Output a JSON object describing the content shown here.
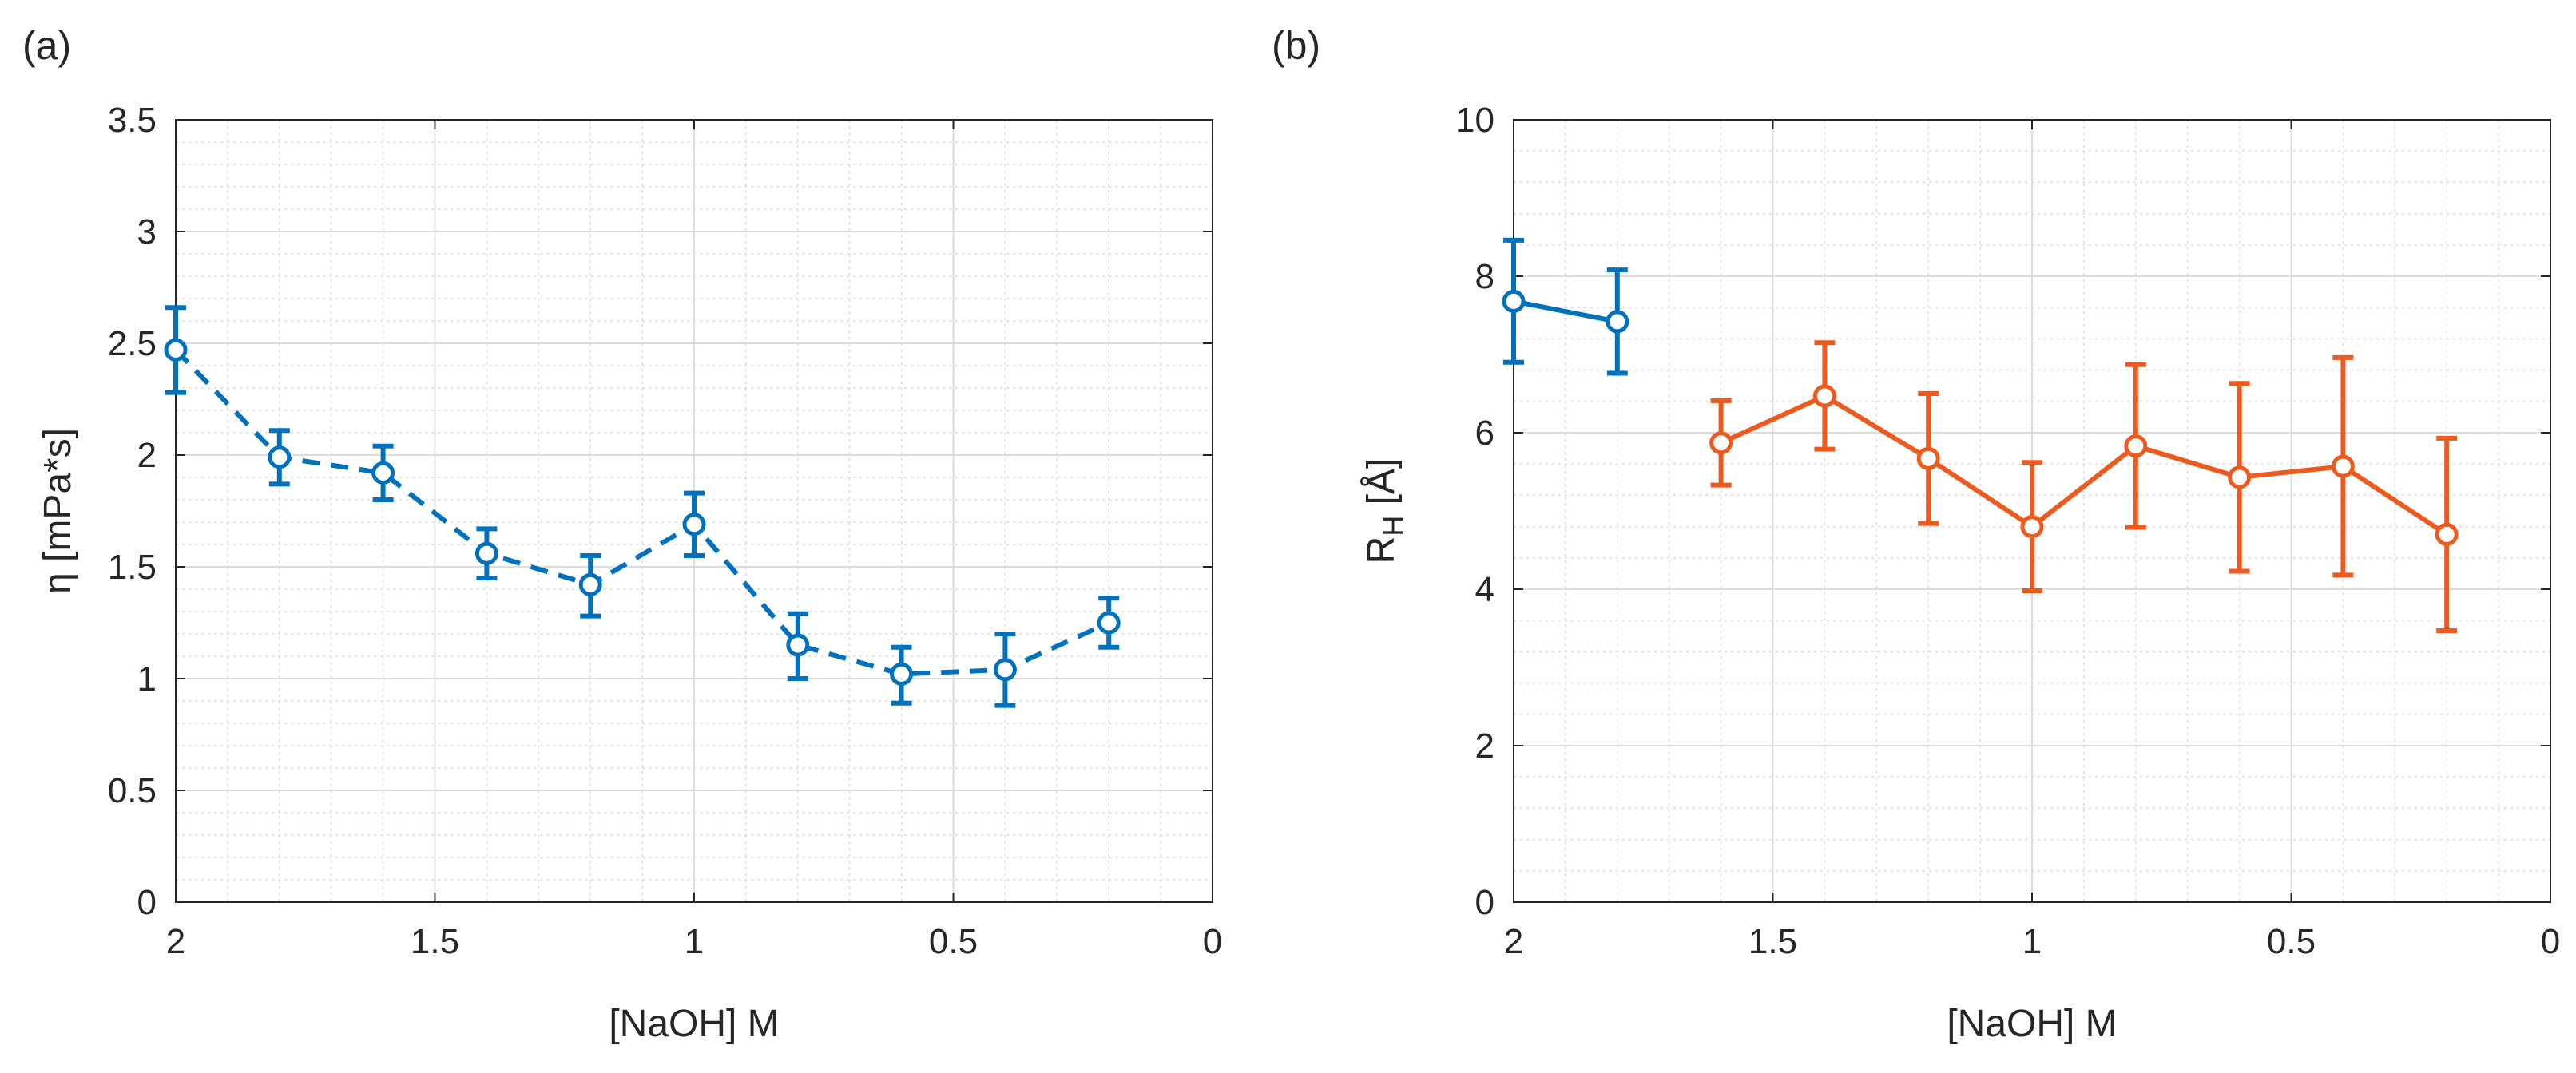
{
  "chart_data": [
    {
      "type": "line",
      "panel_label": "(a)",
      "xlabel": "[NaOH] M",
      "ylabel": "η [mPa*s]",
      "xlim": [
        2,
        0
      ],
      "ylim": [
        0,
        3.5
      ],
      "x_ticks": [
        2,
        1.5,
        1,
        0.5,
        0
      ],
      "x_tick_labels": [
        "2",
        "1.5",
        "1",
        "0.5",
        "0"
      ],
      "y_ticks": [
        0,
        0.5,
        1,
        1.5,
        2,
        2.5,
        3,
        3.5
      ],
      "y_tick_labels": [
        "0",
        "0.5",
        "1",
        "1.5",
        "2",
        "2.5",
        "3",
        "3.5"
      ],
      "x_reversed": true,
      "grid": true,
      "minor_grid": true,
      "series": [
        {
          "color": "#0072BD",
          "line_style": "dashed",
          "marker": "circle",
          "x": [
            2.0,
            1.8,
            1.6,
            1.4,
            1.2,
            1.0,
            0.8,
            0.6,
            0.4,
            0.2
          ],
          "y": [
            2.47,
            1.99,
            1.92,
            1.56,
            1.42,
            1.69,
            1.15,
            1.02,
            1.04,
            1.25
          ],
          "err_low": [
            0.19,
            0.12,
            0.12,
            0.11,
            0.14,
            0.14,
            0.15,
            0.13,
            0.16,
            0.11
          ],
          "err_high": [
            0.19,
            0.12,
            0.12,
            0.11,
            0.13,
            0.14,
            0.14,
            0.12,
            0.16,
            0.11
          ]
        }
      ]
    },
    {
      "type": "line",
      "panel_label": "(b)",
      "xlabel": "[NaOH] M",
      "ylabel_main": "R",
      "ylabel_sub": "H",
      "ylabel_unit": " [Å]",
      "xlim": [
        2,
        0
      ],
      "ylim": [
        0,
        10
      ],
      "x_ticks": [
        2,
        1.5,
        1,
        0.5,
        0
      ],
      "x_tick_labels": [
        "2",
        "1.5",
        "1",
        "0.5",
        "0"
      ],
      "y_ticks": [
        0,
        2,
        4,
        6,
        8,
        10
      ],
      "y_tick_labels": [
        "0",
        "2",
        "4",
        "6",
        "8",
        "10"
      ],
      "x_reversed": true,
      "grid": true,
      "minor_grid": true,
      "series": [
        {
          "color": "#0072BD",
          "line_style": "solid",
          "marker": "circle",
          "x": [
            2.0,
            1.8
          ],
          "y": [
            7.68,
            7.42
          ],
          "err_low": [
            0.78,
            0.66
          ],
          "err_high": [
            0.78,
            0.66
          ]
        },
        {
          "color": "#EE5A1D",
          "line_style": "solid",
          "marker": "circle",
          "x": [
            1.6,
            1.4,
            1.2,
            1.0,
            0.8,
            0.6,
            0.4,
            0.2
          ],
          "y": [
            5.87,
            6.47,
            5.67,
            4.8,
            5.83,
            5.43,
            5.57,
            4.7
          ],
          "err_low": [
            0.54,
            0.68,
            0.83,
            0.82,
            1.04,
            1.2,
            1.39,
            1.23
          ],
          "err_high": [
            0.54,
            0.68,
            0.83,
            0.82,
            1.04,
            1.2,
            1.39,
            1.23
          ]
        }
      ]
    }
  ]
}
